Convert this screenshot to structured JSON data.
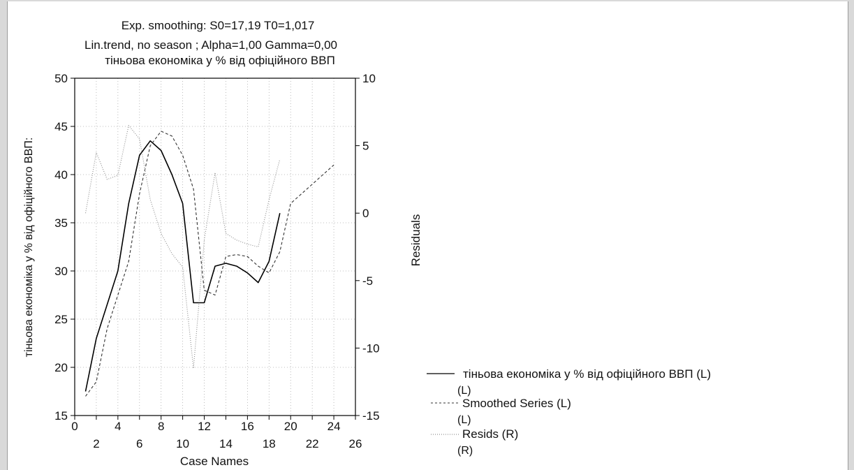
{
  "chart_data": {
    "type": "line",
    "title_lines": [
      "Exp. smoothing:  S0=17,19 T0=1,017",
      "Lin.trend, no season   ; Alpha=1,00 Gamma=0,00",
      "тіньова економіка у % від офіційного ВВП"
    ],
    "xlabel": "Case Names",
    "ylabel_left": "тіньова економіка у % від офіційного ВВП:",
    "ylabel_right": "Residuals",
    "xlim": [
      0,
      26
    ],
    "ylim_left": [
      15,
      50
    ],
    "ylim_right": [
      -15,
      10
    ],
    "x_ticks_top_row": [
      "0",
      "4",
      "8",
      "12",
      "16",
      "20",
      "24"
    ],
    "x_ticks_bottom_row": [
      "2",
      "6",
      "10",
      "14",
      "18",
      "22",
      "26"
    ],
    "y_ticks_left": [
      "15",
      "20",
      "25",
      "30",
      "35",
      "40",
      "45",
      "50"
    ],
    "y_ticks_right": [
      "-15",
      "-10",
      "-5",
      "0",
      "5",
      "10"
    ],
    "grid": true,
    "legend_position": "bottom-right",
    "series": [
      {
        "name": "тіньова економіка у % від офіційного ВВП (L)",
        "legend_suffix": "(L)",
        "axis": "left",
        "style": "solid",
        "x": [
          1,
          2,
          3,
          4,
          5,
          6,
          7,
          8,
          9,
          10,
          11,
          12,
          13,
          14,
          15,
          16,
          17,
          18,
          19
        ],
        "y": [
          17.5,
          23,
          26.5,
          30,
          37,
          42,
          43.5,
          42.5,
          40,
          37,
          26.7,
          26.7,
          30.5,
          30.8,
          30.5,
          29.8,
          28.8,
          31,
          36
        ]
      },
      {
        "name": "Smoothed Series (L)",
        "legend_suffix": "(L)",
        "axis": "left",
        "style": "dashed",
        "x": [
          1,
          2,
          3,
          4,
          5,
          6,
          7,
          8,
          9,
          10,
          11,
          12,
          13,
          14,
          15,
          16,
          17,
          18,
          19,
          20,
          21,
          22,
          23,
          24
        ],
        "y": [
          17,
          18.5,
          24,
          27.5,
          31,
          38,
          43,
          44.5,
          44,
          42,
          38.5,
          28,
          27.5,
          31.5,
          31.7,
          31.5,
          30.5,
          29.8,
          32,
          37,
          38,
          39,
          40,
          41
        ]
      },
      {
        "name": "Resids (R)",
        "legend_suffix": "(R)",
        "axis": "right",
        "style": "dotted",
        "x": [
          1,
          2,
          3,
          4,
          5,
          6,
          7,
          8,
          9,
          10,
          11,
          12,
          13,
          14,
          15,
          16,
          17,
          18,
          19
        ],
        "y": [
          0,
          4.5,
          2.5,
          2.8,
          6.5,
          5.5,
          1,
          -1.5,
          -3,
          -4,
          -11.5,
          -2,
          3,
          -1.5,
          -2,
          -2.3,
          -2.5,
          1,
          4
        ]
      }
    ]
  }
}
